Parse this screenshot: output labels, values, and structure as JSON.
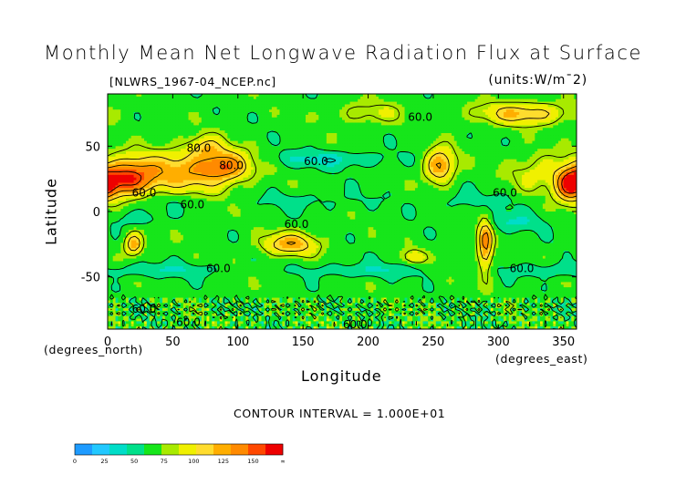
{
  "title": "Monthly Mean Net Longwave Radiation Flux at Surface",
  "file_label": "[NLWRS_1967-04_NCEP.nc]",
  "units_label": "(units:W/m¯2)",
  "contour_interval": "CONTOUR INTERVAL = 1.000E+01",
  "chart_data": {
    "type": "heatmap",
    "title": "Monthly Mean Net Longwave Radiation Flux at Surface",
    "xlabel": "Longitude",
    "ylabel": "Latitude",
    "x_unit_label": "(degrees_east)",
    "y_unit_label": "(degrees_north)",
    "xlim": [
      0,
      360
    ],
    "ylim": [
      -90,
      90
    ],
    "x_ticks": [
      0,
      50,
      100,
      150,
      200,
      250,
      300,
      350
    ],
    "y_ticks": [
      50,
      0,
      -50
    ],
    "contour_labels": [
      {
        "text": "60.0",
        "lon": 240,
        "lat": 72
      },
      {
        "text": "80.0",
        "lon": 70,
        "lat": 48
      },
      {
        "text": "80.0",
        "lon": 95,
        "lat": 35
      },
      {
        "text": "60.0",
        "lon": 160,
        "lat": 38
      },
      {
        "text": "60.0",
        "lon": 28,
        "lat": 14
      },
      {
        "text": "60.0",
        "lon": 65,
        "lat": 5
      },
      {
        "text": "60.0",
        "lon": 305,
        "lat": 14
      },
      {
        "text": "60.0",
        "lon": 145,
        "lat": -10
      },
      {
        "text": "60.0",
        "lon": 85,
        "lat": -44
      },
      {
        "text": "60.0",
        "lon": 318,
        "lat": -44
      },
      {
        "text": "60.0",
        "lon": 28,
        "lat": -75
      },
      {
        "text": "60.0",
        "lon": 62,
        "lat": -85
      },
      {
        "text": "60.0",
        "lon": 190,
        "lat": -87
      }
    ],
    "colorbar": {
      "levels": [
        "0",
        "25",
        "50",
        "75",
        "100",
        "125",
        "150",
        "∞"
      ],
      "colors": [
        "#1e9bff",
        "#22c8ff",
        "#00ddc8",
        "#00e08a",
        "#16e61a",
        "#a8ea00",
        "#f0f000",
        "#ffdc2e",
        "#ffae00",
        "#ff8a00",
        "#ff4800",
        "#ee0000"
      ]
    }
  }
}
